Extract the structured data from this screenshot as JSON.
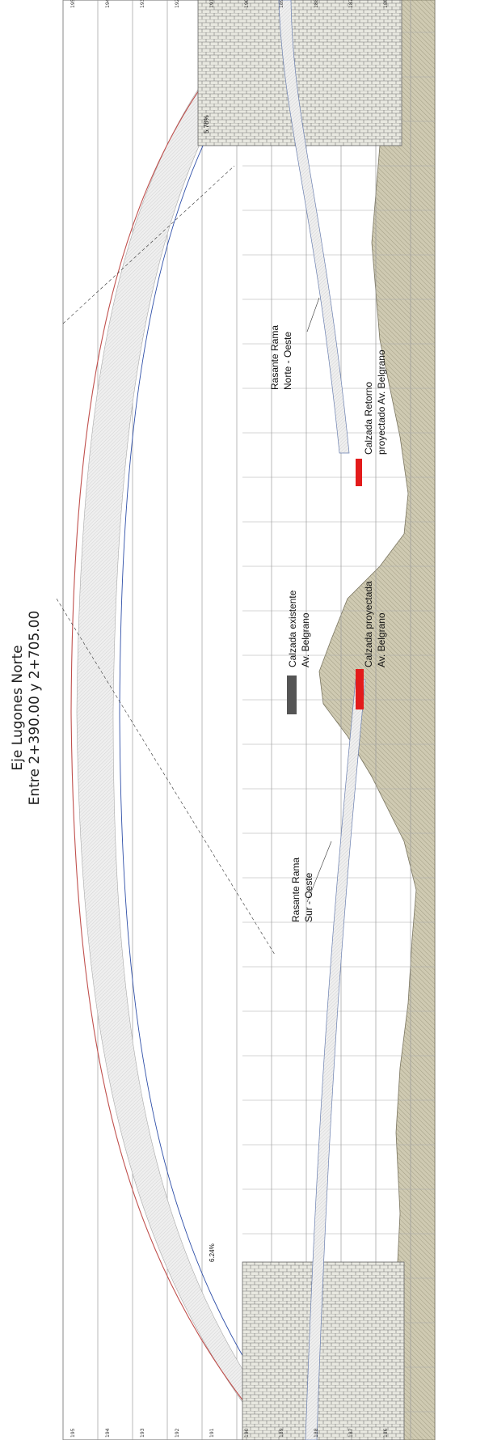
{
  "title": {
    "line1": "Eje Lugones Norte",
    "line2": "Entre 2+390.00 y 2+705.00"
  },
  "grade_labels": {
    "left": "5.78%",
    "right": "6.24%"
  },
  "labels": {
    "rasante_no_1": "Rasante Rama",
    "rasante_no_2": "Norte - Oeste",
    "retorno_1": "Calzada Retorno",
    "retorno_2": "proyectado Av. Belgrano",
    "existente_1": "Calzada existente",
    "existente_2": "Av. Belgrano",
    "proyectada_1": "Calzada proyectada",
    "proyectada_2": "Av. Belgrano",
    "rasante_so_1": "Rasante Rama",
    "rasante_so_2": "Sur - Oeste"
  },
  "elevations_top": [
    "195",
    "194",
    "193",
    "192",
    "191",
    "190",
    "189",
    "188",
    "187",
    "186"
  ],
  "elevations_bottom": [
    "195",
    "194",
    "193",
    "192",
    "191",
    "190",
    "189",
    "188",
    "187",
    "186"
  ],
  "colors": {
    "grid": "#9a9a9a",
    "terrain": "#c9c5ad",
    "red_road": "#e31b1b",
    "existing_road": "#555555",
    "curve_red": "#c0504d",
    "curve_blue": "#2f4fa8"
  }
}
